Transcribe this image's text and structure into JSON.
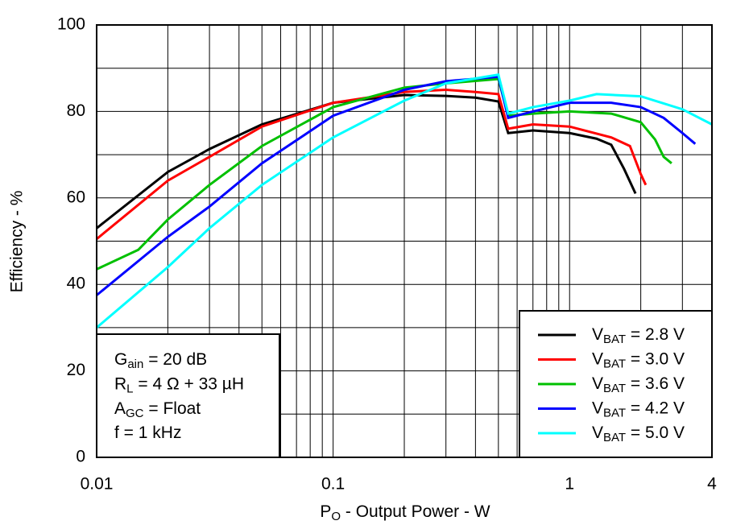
{
  "chart_data": {
    "type": "line",
    "xlabel": "PO - Output Power - W",
    "ylabel": "Efficiency - %",
    "xscale": "log",
    "xlim": [
      0.01,
      4
    ],
    "xticks": [
      0.01,
      0.1,
      1,
      4
    ],
    "xgrid_minor": [
      0.02,
      0.03,
      0.04,
      0.05,
      0.06,
      0.07,
      0.08,
      0.09,
      0.2,
      0.3,
      0.4,
      0.5,
      0.6,
      0.7,
      0.8,
      0.9,
      2,
      3
    ],
    "ylim": [
      0,
      100
    ],
    "yticks": [
      0,
      20,
      40,
      60,
      80,
      100
    ],
    "ygrid_minor": [
      10,
      30,
      50,
      70,
      90
    ],
    "grid": true,
    "legend_position": "lower right",
    "annotations": [
      "Gain = 20 dB",
      "RL = 4 Ω + 33 µH",
      "AGC = Float",
      "f = 1 kHz"
    ],
    "series": [
      {
        "name": "VBAT = 2.8 V",
        "color": "#000000",
        "x": [
          0.01,
          0.02,
          0.03,
          0.05,
          0.1,
          0.2,
          0.3,
          0.4,
          0.5,
          0.55,
          0.7,
          1,
          1.3,
          1.5,
          1.7,
          1.9
        ],
        "values": [
          53,
          66,
          71.3,
          77,
          82,
          83.8,
          83.6,
          83.2,
          82.3,
          75,
          75.6,
          75,
          73.7,
          72.3,
          66.7,
          61
        ]
      },
      {
        "name": "VBAT = 3.0 V",
        "color": "#ff0000",
        "x": [
          0.01,
          0.02,
          0.03,
          0.05,
          0.1,
          0.2,
          0.3,
          0.4,
          0.5,
          0.55,
          0.7,
          1,
          1.5,
          1.8,
          2,
          2.1
        ],
        "values": [
          50.5,
          64,
          69.5,
          76.5,
          82,
          84.5,
          85,
          84.5,
          84,
          76,
          77,
          76.5,
          74,
          72,
          65.5,
          63
        ]
      },
      {
        "name": "VBAT = 3.6 V",
        "color": "#00c000",
        "x": [
          0.01,
          0.015,
          0.02,
          0.03,
          0.05,
          0.1,
          0.2,
          0.3,
          0.5,
          0.55,
          0.7,
          1,
          1.5,
          2,
          2.3,
          2.5,
          2.7
        ],
        "values": [
          43.5,
          48,
          55,
          63,
          72,
          81,
          85.5,
          86.5,
          87.5,
          79,
          79.5,
          80,
          79.5,
          77.5,
          73.5,
          69.5,
          68
        ]
      },
      {
        "name": "VBAT = 4.2 V",
        "color": "#0000ff",
        "x": [
          0.01,
          0.02,
          0.03,
          0.05,
          0.1,
          0.2,
          0.3,
          0.5,
          0.55,
          0.7,
          1,
          1.5,
          2,
          2.5,
          3,
          3.4
        ],
        "values": [
          37.5,
          51,
          58,
          68,
          79,
          85,
          87,
          88,
          78.5,
          80,
          82,
          82,
          81,
          78.5,
          75,
          72.5
        ]
      },
      {
        "name": "VBAT = 5.0 V",
        "color": "#00ffff",
        "x": [
          0.01,
          0.02,
          0.03,
          0.05,
          0.1,
          0.2,
          0.3,
          0.5,
          0.55,
          0.7,
          1,
          1.3,
          2,
          3,
          4
        ],
        "values": [
          30,
          44,
          53,
          63,
          74,
          82.5,
          86.5,
          88.5,
          79.5,
          81,
          82.5,
          84,
          83.5,
          80.5,
          77
        ]
      }
    ]
  }
}
